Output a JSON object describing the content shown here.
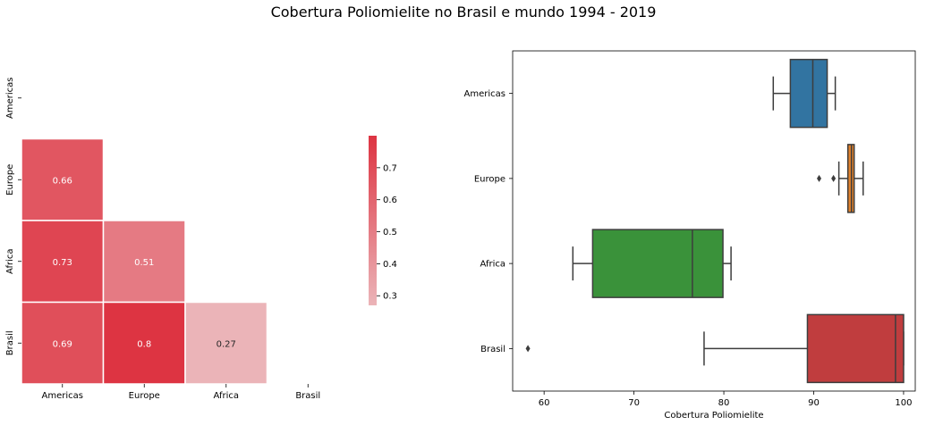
{
  "figure": {
    "title": "Cobertura Poliomielite no Brasil e mundo 1994 - 2019"
  },
  "chart_data": [
    {
      "type": "heatmap",
      "labels": [
        "Americas",
        "Europe",
        "Africa",
        "Brasil"
      ],
      "mask": "upper-triangle",
      "cells": [
        {
          "row": "Europe",
          "col": "Americas",
          "value": 0.66,
          "label": "0.66"
        },
        {
          "row": "Africa",
          "col": "Americas",
          "value": 0.73,
          "label": "0.73"
        },
        {
          "row": "Africa",
          "col": "Europe",
          "value": 0.51,
          "label": "0.51"
        },
        {
          "row": "Brasil",
          "col": "Americas",
          "value": 0.69,
          "label": "0.69"
        },
        {
          "row": "Brasil",
          "col": "Europe",
          "value": 0.8,
          "label": "0.8"
        },
        {
          "row": "Brasil",
          "col": "Africa",
          "value": 0.27,
          "label": "0.27"
        }
      ],
      "colorbar": {
        "range": [
          0.27,
          0.8
        ],
        "ticks": [
          0.7,
          0.6,
          0.5,
          0.4,
          0.3
        ],
        "tick_labels": [
          "0.7",
          "0.6",
          "0.5",
          "0.4",
          "0.3"
        ],
        "color_low": "#ebb4b8",
        "color_high": "#dd3442"
      }
    },
    {
      "type": "box",
      "orientation": "horizontal",
      "categories": [
        "Americas",
        "Europe",
        "Africa",
        "Brasil"
      ],
      "xlabel": "Cobertura Poliomielite",
      "xlim": [
        56.5,
        101.3
      ],
      "xticks": [
        60,
        70,
        80,
        90,
        100
      ],
      "xtick_labels": [
        "60",
        "70",
        "80",
        "90",
        "100"
      ],
      "boxes": [
        {
          "category": "Americas",
          "whisker_low": 85.5,
          "q1": 87.4,
          "median": 89.9,
          "q3": 91.5,
          "whisker_high": 92.4,
          "outliers": [],
          "color": "#3274a1"
        },
        {
          "category": "Europe",
          "whisker_low": 92.8,
          "q1": 93.8,
          "median": 94.2,
          "q3": 94.5,
          "whisker_high": 95.5,
          "outliers": [
            90.6,
            92.2
          ],
          "color": "#e1812c"
        },
        {
          "category": "Africa",
          "whisker_low": 63.2,
          "q1": 65.4,
          "median": 76.5,
          "q3": 79.9,
          "whisker_high": 80.8,
          "outliers": [],
          "color": "#3a923a"
        },
        {
          "category": "Brasil",
          "whisker_low": 77.8,
          "q1": 89.3,
          "median": 99.1,
          "q3": 100.0,
          "whisker_high": 100.0,
          "outliers": [
            58.2
          ],
          "color": "#c03d3e"
        }
      ]
    }
  ]
}
